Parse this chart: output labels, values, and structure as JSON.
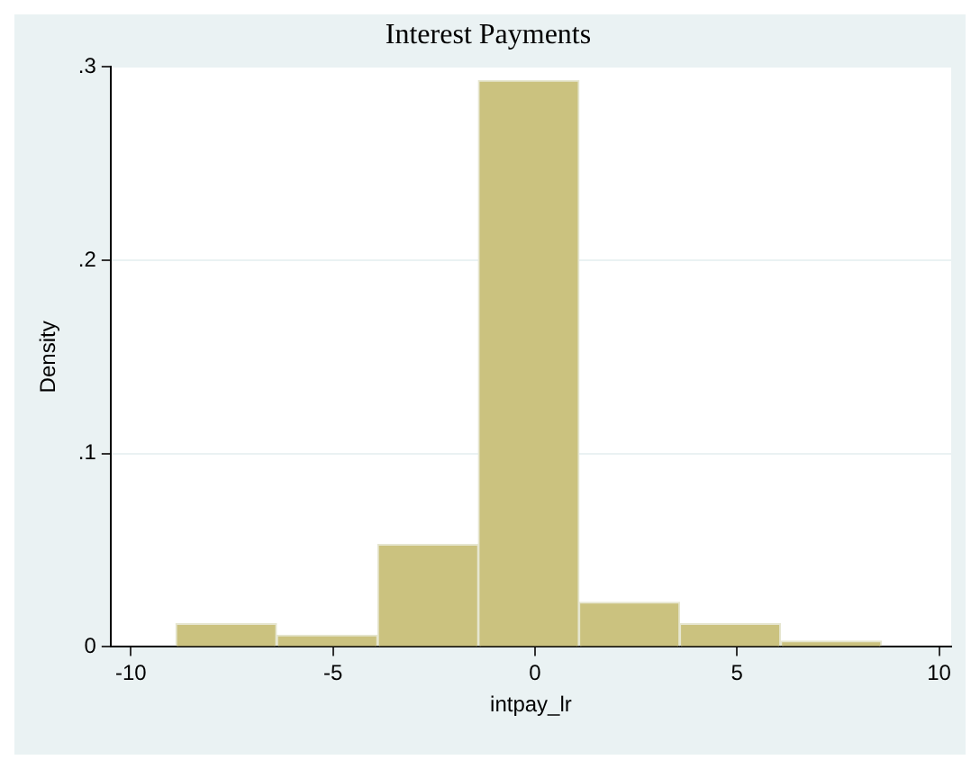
{
  "chart_data": {
    "type": "histogram",
    "title": "Interest Payments",
    "xlabel": "intpay_lr",
    "ylabel": "Density",
    "bins": [
      -8.89,
      -6.39,
      -3.89,
      -1.4,
      1.09,
      3.58,
      6.08,
      8.58
    ],
    "values": [
      0.012,
      0.006,
      0.053,
      0.293,
      0.023,
      0.012,
      0.003
    ],
    "color": "#cbc27f",
    "xlim": [
      -10.5,
      10.3
    ],
    "xticks": [
      -10,
      -5,
      0,
      5,
      10
    ],
    "ylim": [
      0,
      0.3
    ],
    "yticks": [
      {
        "value": 0,
        "label": "0"
      },
      {
        "value": 0.1,
        "label": ".1"
      },
      {
        "value": 0.2,
        "label": ".2"
      },
      {
        "value": 0.3,
        "label": ".3"
      }
    ],
    "grid": "y",
    "legend": false
  }
}
